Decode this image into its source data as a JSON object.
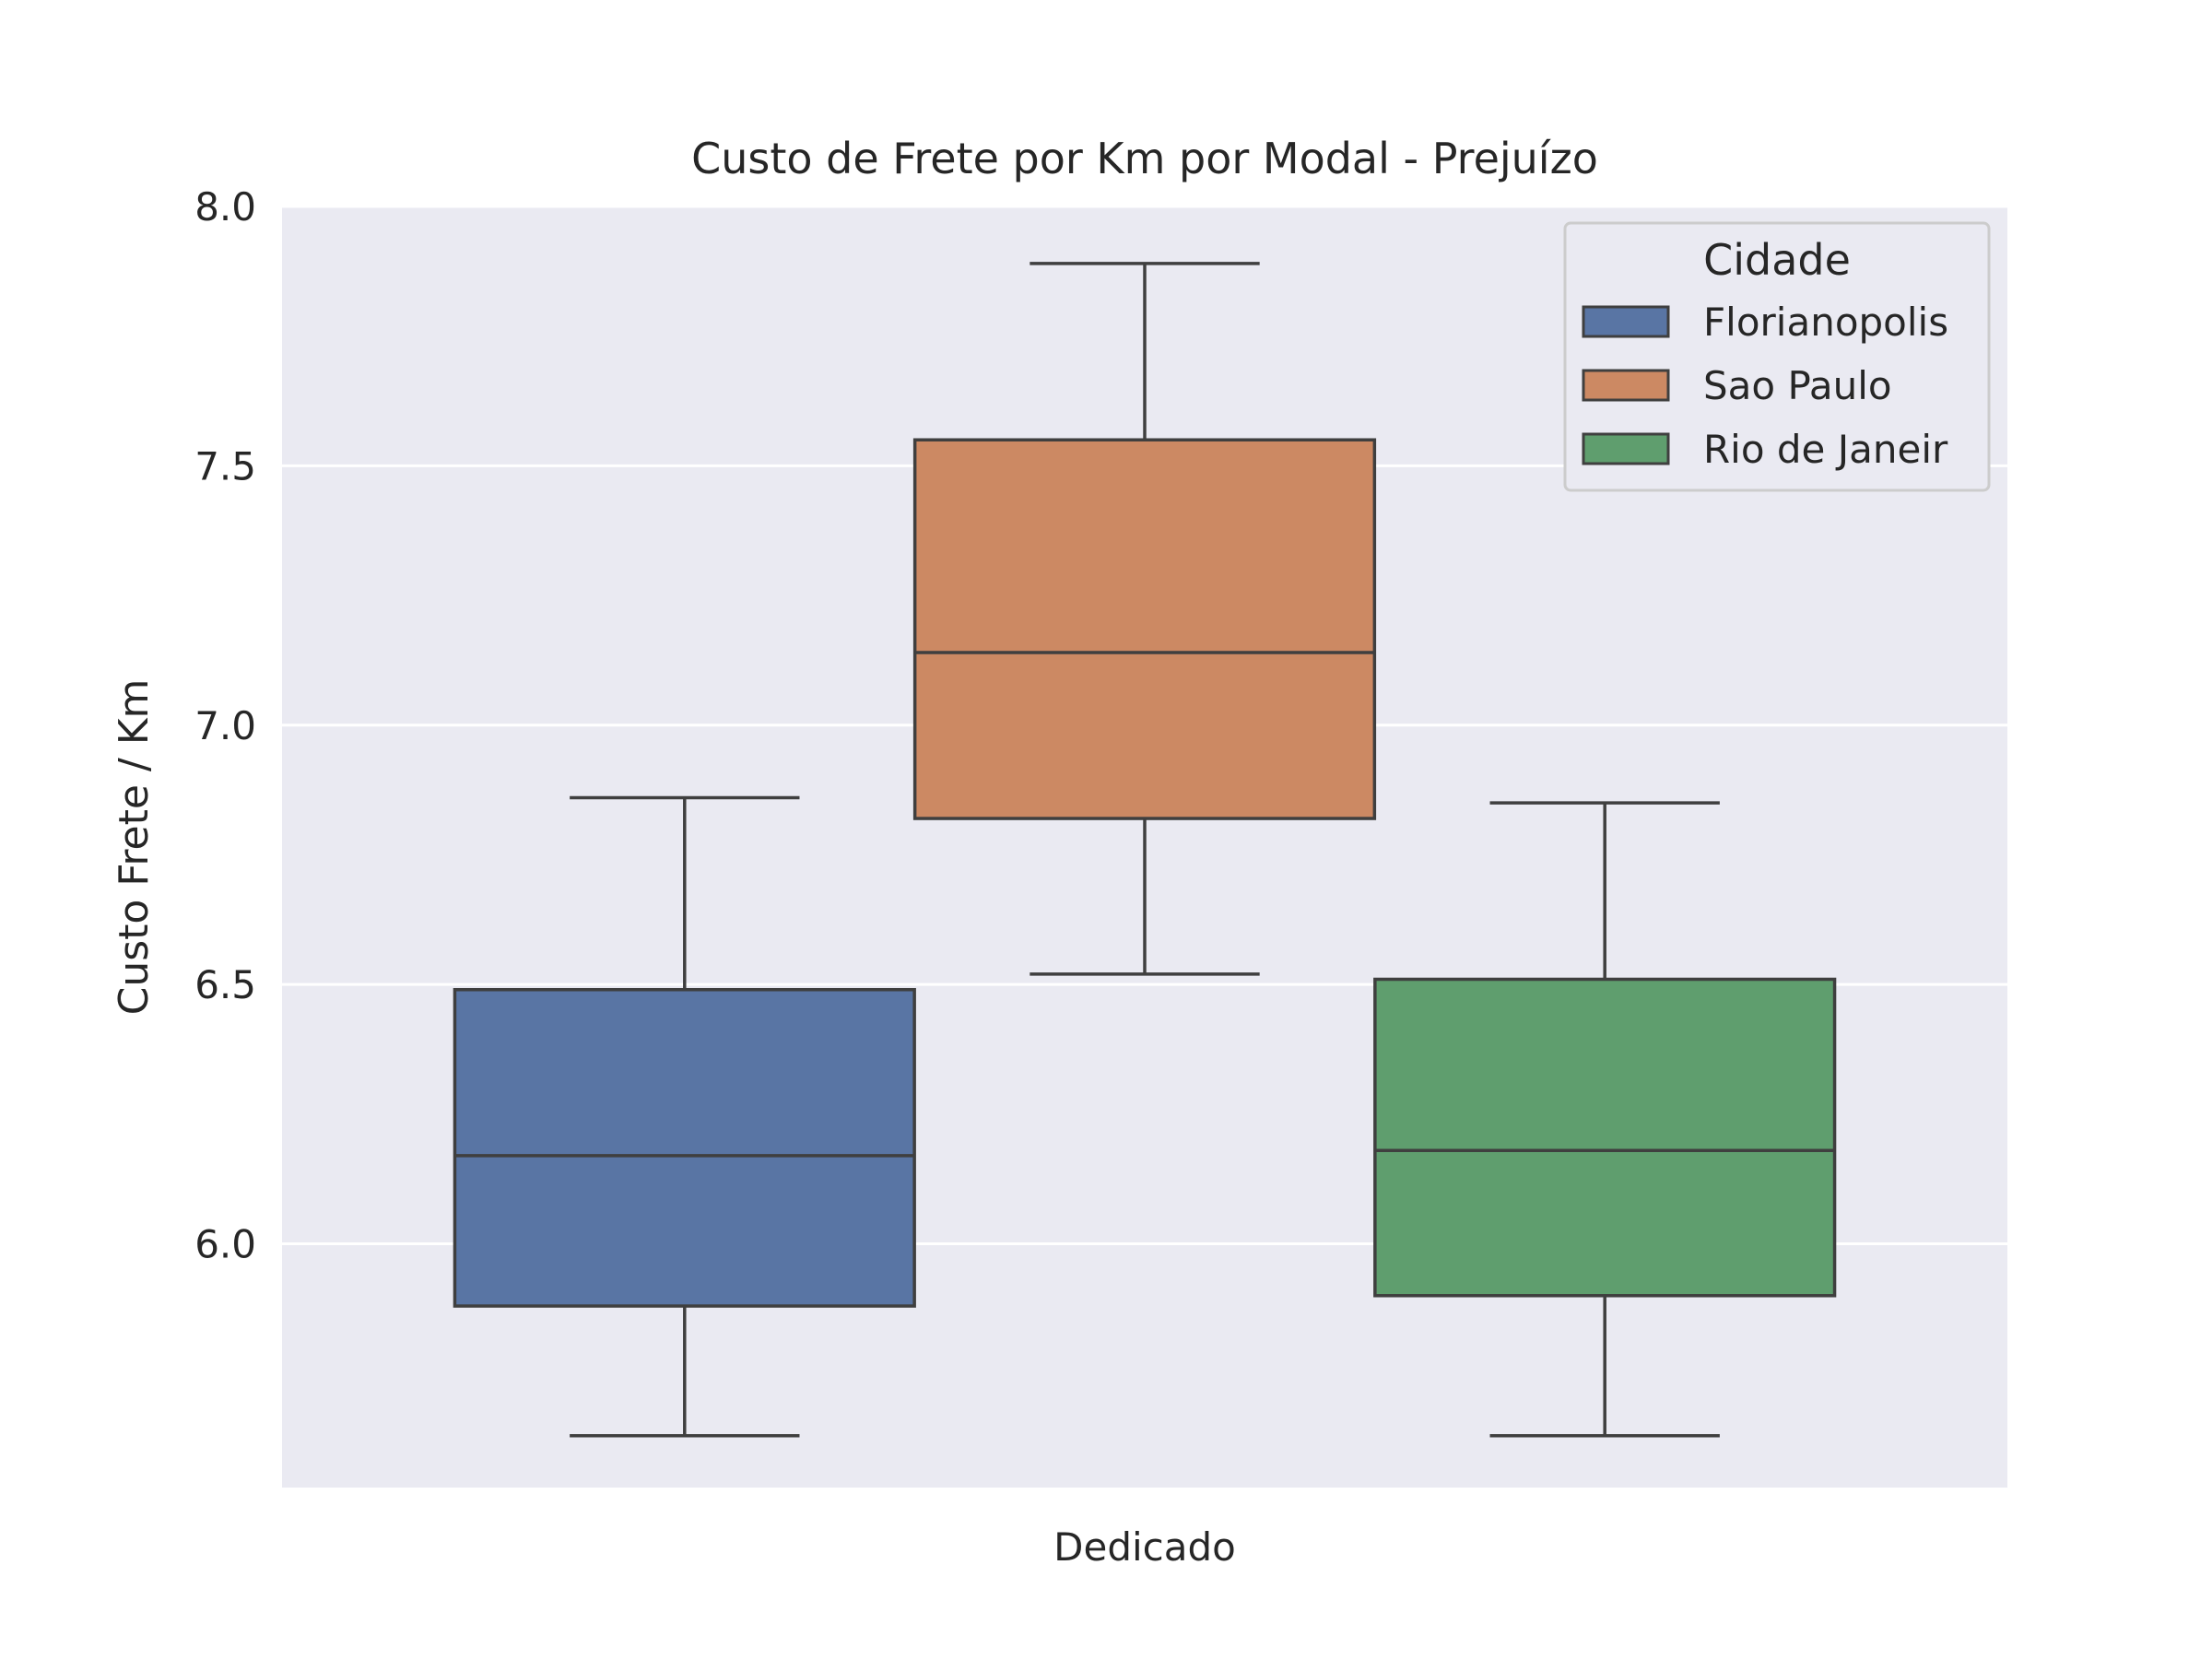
{
  "chart_data": {
    "type": "box",
    "title": "Custo de Frete por Km por Modal - Prejuízo",
    "xlabel": "",
    "ylabel": "Custo Frete / Km",
    "categories": [
      "Dedicado"
    ],
    "ylim": [
      5.53,
      8.0
    ],
    "yticks": [
      6.0,
      6.5,
      7.0,
      7.5,
      8.0
    ],
    "ytick_labels": [
      "6.0",
      "6.5",
      "7.0",
      "7.5",
      "8.0"
    ],
    "grid": true,
    "legend": {
      "title": "Cidade",
      "position": "top-right"
    },
    "series": [
      {
        "name": "Florianopolis",
        "color": "#5975a4",
        "whisker_low": 5.63,
        "q1": 5.88,
        "median": 6.17,
        "q3": 6.49,
        "whisker_high": 6.86
      },
      {
        "name": "Sao Paulo",
        "color": "#cc8963",
        "whisker_low": 6.52,
        "q1": 6.82,
        "median": 7.14,
        "q3": 7.55,
        "whisker_high": 7.89
      },
      {
        "name": "Rio de Janeir",
        "color": "#5f9e6e",
        "whisker_low": 5.63,
        "q1": 5.9,
        "median": 6.18,
        "q3": 6.51,
        "whisker_high": 6.85
      }
    ]
  }
}
